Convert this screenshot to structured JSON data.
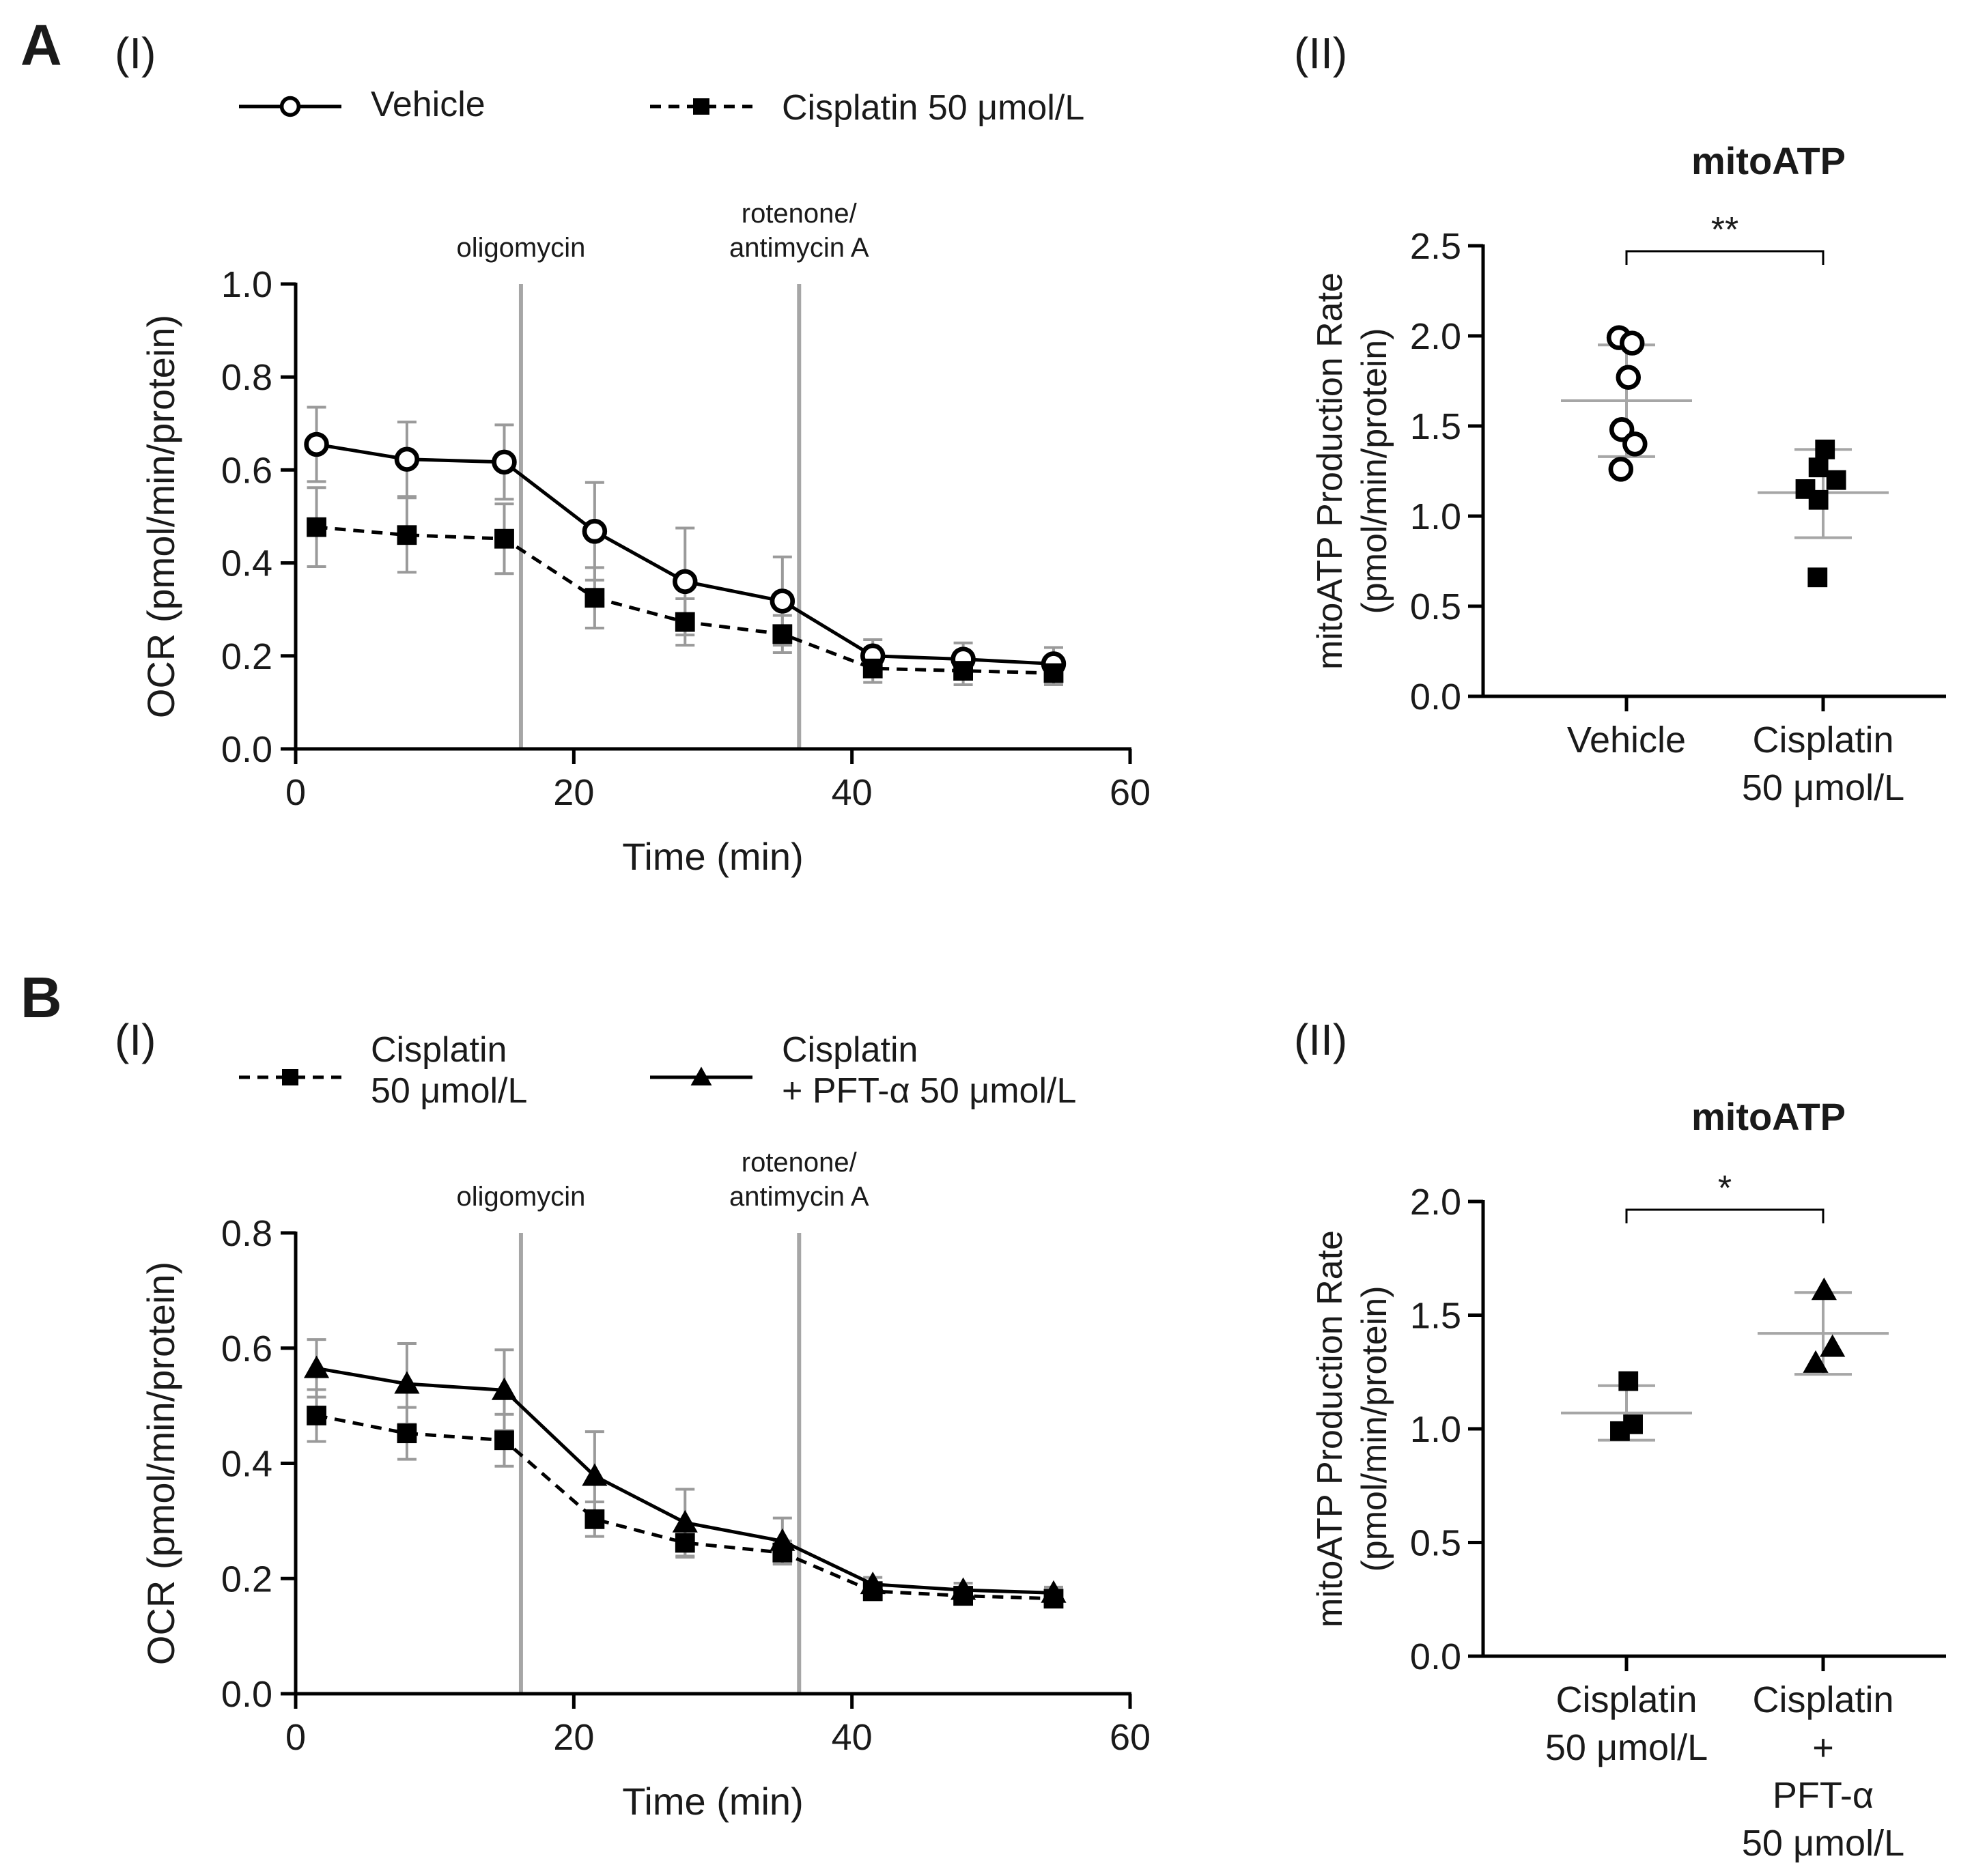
{
  "figure": {
    "panel_a_letter": "A",
    "panel_b_letter": "B"
  },
  "chart_data": [
    {
      "id": "A1",
      "type": "line",
      "sublabel": "(I)",
      "xlabel": "Time (min)",
      "ylabel": "OCR (pmol/min/protein)",
      "xlim": [
        0,
        60
      ],
      "ylim": [
        0,
        1.0
      ],
      "xticks": [
        "0",
        "20",
        "40",
        "60"
      ],
      "yticks": [
        "0.0",
        "0.2",
        "0.4",
        "0.6",
        "0.8",
        "1.0"
      ],
      "x": [
        1.5,
        8,
        15,
        21.5,
        28,
        35,
        41.5,
        48,
        54.5
      ],
      "events": [
        {
          "x": 16.2,
          "label_lines": [
            "oligomycin"
          ]
        },
        {
          "x": 36.2,
          "label_lines": [
            "rotenone/",
            "antimycin A"
          ]
        }
      ],
      "series": [
        {
          "name": "Vehicle",
          "legend_lines": [
            "Vehicle"
          ],
          "marker": "circle-open",
          "dash": false,
          "values": [
            0.655,
            0.623,
            0.617,
            0.468,
            0.36,
            0.318,
            0.2,
            0.193,
            0.183
          ],
          "errors": [
            0.08,
            0.08,
            0.08,
            0.105,
            0.115,
            0.095,
            0.035,
            0.035,
            0.035
          ]
        },
        {
          "name": "Cisplatin 50 μmol/L",
          "legend_lines": [
            "Cisplatin 50 μmol/L"
          ],
          "marker": "square",
          "dash": true,
          "values": [
            0.477,
            0.46,
            0.452,
            0.325,
            0.273,
            0.247,
            0.173,
            0.168,
            0.163
          ],
          "errors": [
            0.085,
            0.08,
            0.075,
            0.065,
            0.05,
            0.04,
            0.03,
            0.03,
            0.025
          ]
        }
      ]
    },
    {
      "id": "A2",
      "type": "scatter",
      "sublabel": "(II)",
      "title": "mitoATP",
      "ylabel_lines": [
        "mitoATP Production Rate",
        "(pmol/min/protein)"
      ],
      "ylim": [
        0,
        2.5
      ],
      "yticks": [
        "0.0",
        "0.5",
        "1.0",
        "1.5",
        "2.0",
        "2.5"
      ],
      "significance": "**",
      "groups": [
        {
          "name_lines": [
            "Vehicle"
          ],
          "marker": "circle-open",
          "points": [
            [
              -0.08,
              1.99
            ],
            [
              0.06,
              1.96
            ],
            [
              0.02,
              1.77
            ],
            [
              -0.05,
              1.48
            ],
            [
              0.09,
              1.4
            ],
            [
              -0.06,
              1.26
            ]
          ],
          "mean": 1.64,
          "sd_high": 1.95,
          "sd_low": 1.33
        },
        {
          "name_lines": [
            "Cisplatin",
            "50 μmol/L"
          ],
          "marker": "square",
          "points": [
            [
              0.02,
              1.37
            ],
            [
              -0.05,
              1.27
            ],
            [
              0.14,
              1.2
            ],
            [
              -0.19,
              1.15
            ],
            [
              -0.05,
              1.09
            ],
            [
              -0.06,
              0.66
            ]
          ],
          "mean": 1.13,
          "sd_high": 1.37,
          "sd_low": 0.88
        }
      ]
    },
    {
      "id": "B1",
      "type": "line",
      "sublabel": "(I)",
      "xlabel": "Time (min)",
      "ylabel": "OCR (pmol/min/protein)",
      "xlim": [
        0,
        60
      ],
      "ylim": [
        0,
        0.8
      ],
      "xticks": [
        "0",
        "20",
        "40",
        "60"
      ],
      "yticks": [
        "0.0",
        "0.2",
        "0.4",
        "0.6",
        "0.8"
      ],
      "x": [
        1.5,
        8,
        15,
        21.5,
        28,
        35,
        41.5,
        48,
        54.5
      ],
      "events": [
        {
          "x": 16.2,
          "label_lines": [
            "oligomycin"
          ]
        },
        {
          "x": 36.2,
          "label_lines": [
            "rotenone/",
            "antimycin A"
          ]
        }
      ],
      "series": [
        {
          "name": "Cisplatin 50 μmol/L",
          "legend_lines": [
            "Cisplatin",
            "50 μmol/L"
          ],
          "marker": "square",
          "dash": true,
          "values": [
            0.483,
            0.452,
            0.44,
            0.303,
            0.262,
            0.245,
            0.178,
            0.17,
            0.165
          ],
          "errors": [
            0.045,
            0.045,
            0.045,
            0.03,
            0.025,
            0.02,
            0.015,
            0.015,
            0.012
          ]
        },
        {
          "name": "Cisplatin + PFT-α 50 μmol/L",
          "legend_lines": [
            "Cisplatin",
            "+ PFT-α 50 μmol/L"
          ],
          "marker": "triangle",
          "dash": false,
          "values": [
            0.565,
            0.538,
            0.527,
            0.378,
            0.297,
            0.265,
            0.19,
            0.18,
            0.175
          ],
          "errors": [
            0.05,
            0.07,
            0.07,
            0.077,
            0.058,
            0.04,
            0.012,
            0.012,
            0.01
          ]
        }
      ]
    },
    {
      "id": "B2",
      "type": "scatter",
      "sublabel": "(II)",
      "title": "mitoATP",
      "ylabel_lines": [
        "mitoATP Production Rate",
        "(pmol/min/protein)"
      ],
      "ylim": [
        0,
        2.0
      ],
      "yticks": [
        "0.0",
        "0.5",
        "1.0",
        "1.5",
        "2.0"
      ],
      "significance": "*",
      "groups": [
        {
          "name_lines": [
            "Cisplatin",
            "50 μmol/L"
          ],
          "marker": "square",
          "points": [
            [
              0.02,
              1.21
            ],
            [
              -0.07,
              0.99
            ],
            [
              0.07,
              1.02
            ]
          ],
          "mean": 1.07,
          "sd_high": 1.19,
          "sd_low": 0.95
        },
        {
          "name_lines": [
            "Cisplatin",
            "+",
            "PFT-α",
            "50 μmol/L"
          ],
          "marker": "triangle",
          "points": [
            [
              0.01,
              1.61
            ],
            [
              0.1,
              1.36
            ],
            [
              -0.08,
              1.29
            ]
          ],
          "mean": 1.42,
          "sd_high": 1.6,
          "sd_low": 1.24
        }
      ]
    }
  ]
}
